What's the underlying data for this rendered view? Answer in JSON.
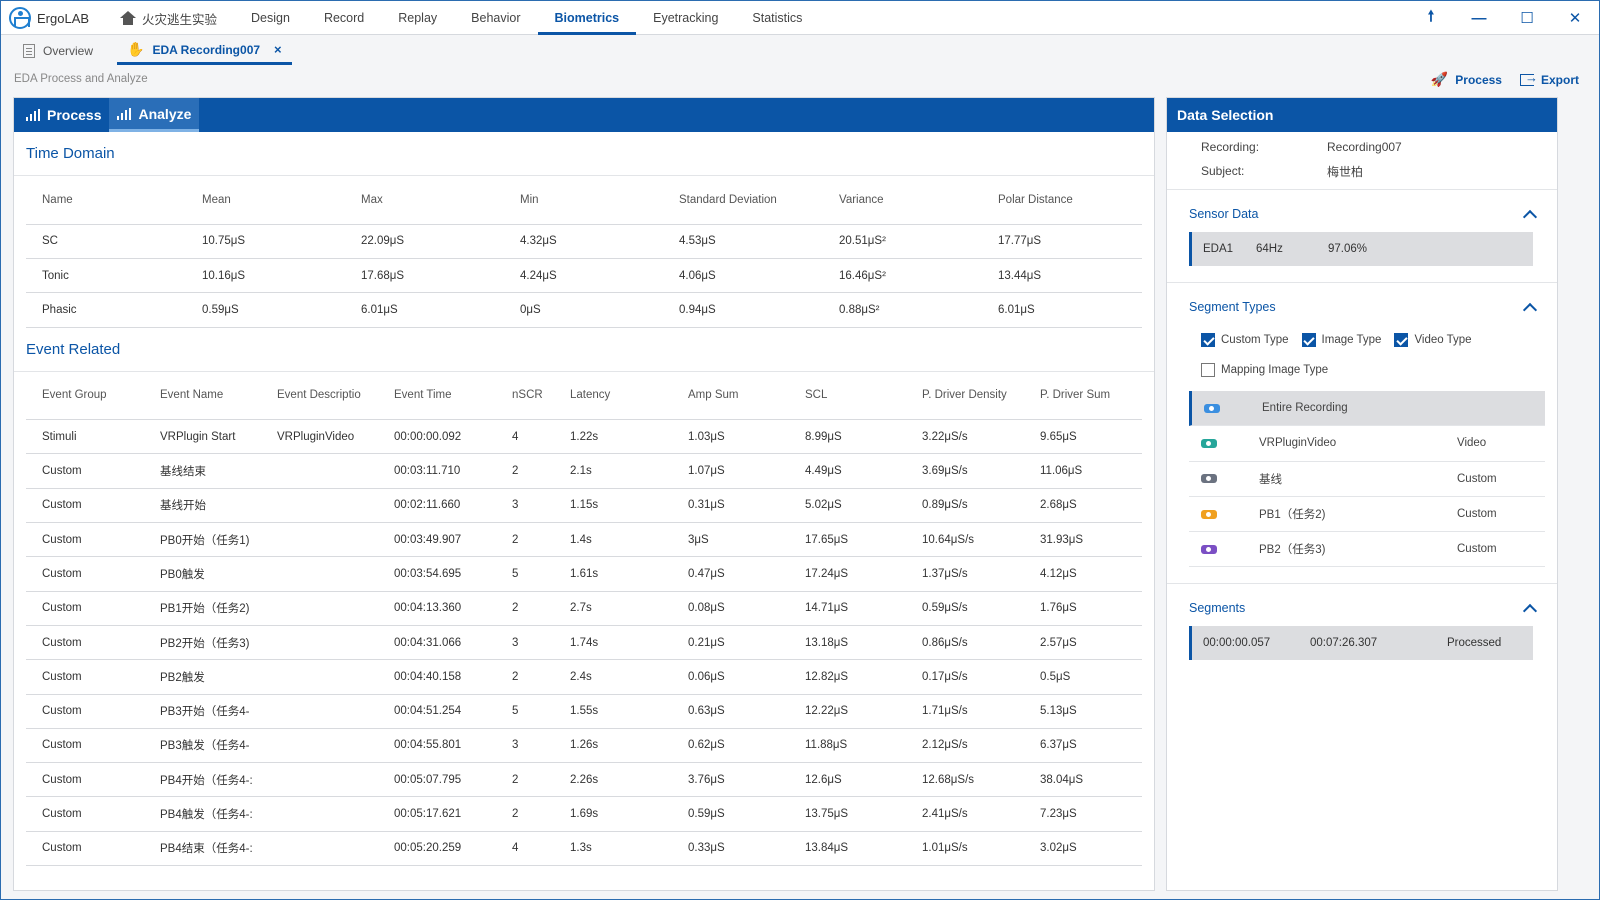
{
  "app": {
    "name": "ErgoLAB"
  },
  "menu": {
    "home": "火灾逃生实验",
    "items": [
      "Design",
      "Record",
      "Replay",
      "Behavior",
      "Biometrics",
      "Eyetracking",
      "Statistics"
    ],
    "active": "Biometrics"
  },
  "window_controls": {
    "pin": "🠕",
    "minimize": "—",
    "maximize": "☐",
    "close": "✕"
  },
  "tabs": [
    {
      "label": "Overview"
    },
    {
      "label": "EDA Recording007",
      "close": "×"
    }
  ],
  "page": {
    "title": "EDA Process and Analyze",
    "actions": {
      "process": "Process",
      "export": "Export"
    }
  },
  "main": {
    "tabs": {
      "process": "Process",
      "analyze": "Analyze"
    },
    "time_domain": {
      "title": "Time Domain",
      "columns": [
        "Name",
        "Mean",
        "Max",
        "Min",
        "Standard Deviation",
        "Variance",
        "Polar Distance"
      ],
      "rows": [
        [
          "SC",
          "10.75μS",
          "22.09μS",
          "4.32μS",
          "4.53μS",
          "20.51μS²",
          "17.77μS"
        ],
        [
          "Tonic",
          "10.16μS",
          "17.68μS",
          "4.24μS",
          "4.06μS",
          "16.46μS²",
          "13.44μS"
        ],
        [
          "Phasic",
          "0.59μS",
          "6.01μS",
          "0μS",
          "0.94μS",
          "0.88μS²",
          "6.01μS"
        ]
      ]
    },
    "event_related": {
      "title": "Event Related",
      "columns": [
        "Event Group",
        "Event Name",
        "Event Descriptio",
        "Event Time",
        "nSCR",
        "Latency",
        "Amp Sum",
        "SCL",
        "P. Driver Density",
        "P. Driver Sum"
      ],
      "rows": [
        [
          "Stimuli",
          "VRPlugin Start",
          "VRPluginVideo",
          "00:00:00.092",
          "4",
          "1.22s",
          "1.03μS",
          "8.99μS",
          "3.22μS/s",
          "9.65μS"
        ],
        [
          "Custom",
          "基线结束",
          "",
          "00:03:11.710",
          "2",
          "2.1s",
          "1.07μS",
          "4.49μS",
          "3.69μS/s",
          "11.06μS"
        ],
        [
          "Custom",
          "基线开始",
          "",
          "00:02:11.660",
          "3",
          "1.15s",
          "0.31μS",
          "5.02μS",
          "0.89μS/s",
          "2.68μS"
        ],
        [
          "Custom",
          "PB0开始（任务1)",
          "",
          "00:03:49.907",
          "2",
          "1.4s",
          "3μS",
          "17.65μS",
          "10.64μS/s",
          "31.93μS"
        ],
        [
          "Custom",
          "PB0触发",
          "",
          "00:03:54.695",
          "5",
          "1.61s",
          "0.47μS",
          "17.24μS",
          "1.37μS/s",
          "4.12μS"
        ],
        [
          "Custom",
          "PB1开始（任务2)",
          "",
          "00:04:13.360",
          "2",
          "2.7s",
          "0.08μS",
          "14.71μS",
          "0.59μS/s",
          "1.76μS"
        ],
        [
          "Custom",
          "PB2开始（任务3)",
          "",
          "00:04:31.066",
          "3",
          "1.74s",
          "0.21μS",
          "13.18μS",
          "0.86μS/s",
          "2.57μS"
        ],
        [
          "Custom",
          "PB2触发",
          "",
          "00:04:40.158",
          "2",
          "2.4s",
          "0.06μS",
          "12.82μS",
          "0.17μS/s",
          "0.5μS"
        ],
        [
          "Custom",
          "PB3开始（任务4-",
          "",
          "00:04:51.254",
          "5",
          "1.55s",
          "0.63μS",
          "12.22μS",
          "1.71μS/s",
          "5.13μS"
        ],
        [
          "Custom",
          "PB3触发（任务4-",
          "",
          "00:04:55.801",
          "3",
          "1.26s",
          "0.62μS",
          "11.88μS",
          "2.12μS/s",
          "6.37μS"
        ],
        [
          "Custom",
          "PB4开始（任务4-:",
          "",
          "00:05:07.795",
          "2",
          "2.26s",
          "3.76μS",
          "12.6μS",
          "12.68μS/s",
          "38.04μS"
        ],
        [
          "Custom",
          "PB4触发（任务4-:",
          "",
          "00:05:17.621",
          "2",
          "1.69s",
          "0.59μS",
          "13.75μS",
          "2.41μS/s",
          "7.23μS"
        ],
        [
          "Custom",
          "PB4结束（任务4-:",
          "",
          "00:05:20.259",
          "4",
          "1.3s",
          "0.33μS",
          "13.84μS",
          "1.01μS/s",
          "3.02μS"
        ]
      ]
    }
  },
  "side": {
    "title": "Data Selection",
    "recording_label": "Recording:",
    "recording_value": "Recording007",
    "subject_label": "Subject:",
    "subject_value": "梅世柏",
    "sensor_data": {
      "title": "Sensor Data",
      "row": [
        "EDA1",
        "64Hz",
        "97.06%"
      ]
    },
    "segment_types": {
      "title": "Segment Types",
      "checks": [
        {
          "label": "Custom Type",
          "checked": true
        },
        {
          "label": "Image Type",
          "checked": true
        },
        {
          "label": "Video Type",
          "checked": true
        },
        {
          "label": "Mapping Image Type",
          "checked": false
        }
      ],
      "list": [
        {
          "name": "Entire Recording",
          "type": "",
          "color": "#3b8fe0",
          "selected": true
        },
        {
          "name": "VRPluginVideo",
          "type": "Video",
          "color": "#26a69a",
          "selected": false
        },
        {
          "name": "基线",
          "type": "Custom",
          "color": "#6b7280",
          "selected": false
        },
        {
          "name": "PB1（任务2)",
          "type": "Custom",
          "color": "#f0a020",
          "selected": false
        },
        {
          "name": "PB2（任务3)",
          "type": "Custom",
          "color": "#7b4fc4",
          "selected": false
        }
      ]
    },
    "segments": {
      "title": "Segments",
      "row": [
        "00:00:00.057",
        "00:07:26.307",
        "Processed"
      ]
    }
  }
}
